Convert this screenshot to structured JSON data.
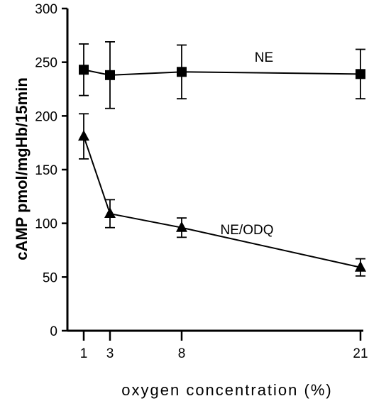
{
  "chart_data": {
    "type": "line",
    "xlabel": "oxygen concentration (%)",
    "ylabel": "cAMP pmol/mgHb/15min",
    "x": [
      1,
      3,
      8,
      21
    ],
    "xticks": [
      1,
      3,
      8,
      21
    ],
    "ylim": [
      0,
      300
    ],
    "yticks": [
      0,
      50,
      100,
      150,
      200,
      250,
      300
    ],
    "grid": false,
    "series": [
      {
        "name": "NE",
        "marker": "square",
        "values": [
          243,
          238,
          241,
          239
        ],
        "error": [
          24,
          31,
          25,
          23
        ]
      },
      {
        "name": "NE/ODQ",
        "marker": "triangle",
        "values": [
          181,
          109,
          96,
          59
        ],
        "error": [
          21,
          13,
          9,
          8
        ]
      }
    ]
  }
}
